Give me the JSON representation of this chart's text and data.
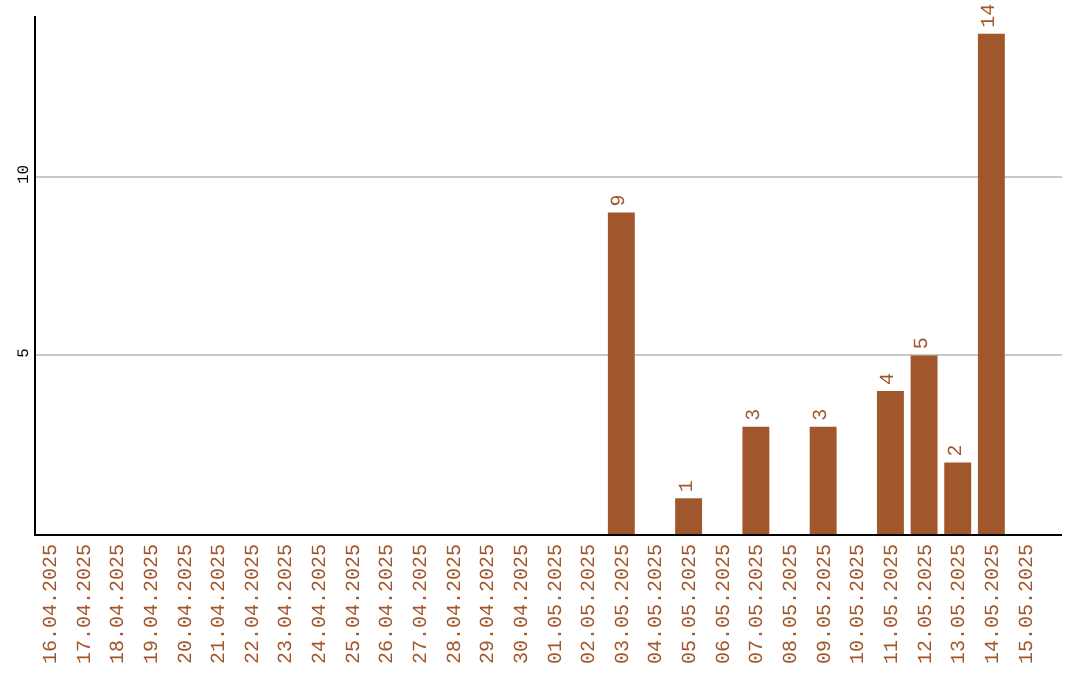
{
  "chart_data": {
    "type": "bar",
    "categories": [
      "16.04.2025",
      "17.04.2025",
      "18.04.2025",
      "19.04.2025",
      "20.04.2025",
      "21.04.2025",
      "22.04.2025",
      "23.04.2025",
      "24.04.2025",
      "25.04.2025",
      "26.04.2025",
      "27.04.2025",
      "28.04.2025",
      "29.04.2025",
      "30.04.2025",
      "01.05.2025",
      "02.05.2025",
      "03.05.2025",
      "04.05.2025",
      "05.05.2025",
      "06.05.2025",
      "07.05.2025",
      "08.05.2025",
      "09.05.2025",
      "10.05.2025",
      "11.05.2025",
      "12.05.2025",
      "13.05.2025",
      "14.05.2025",
      "15.05.2025"
    ],
    "values": [
      0,
      0,
      0,
      0,
      0,
      0,
      0,
      0,
      0,
      0,
      0,
      0,
      0,
      0,
      0,
      0,
      0,
      9,
      0,
      1,
      0,
      3,
      0,
      3,
      0,
      4,
      5,
      2,
      14,
      0
    ],
    "value_labels": [
      null,
      null,
      null,
      null,
      null,
      null,
      null,
      null,
      null,
      null,
      null,
      null,
      null,
      null,
      null,
      null,
      null,
      "9",
      null,
      "1",
      null,
      "3",
      null,
      "3",
      null,
      "4",
      "5",
      "2",
      "14",
      null
    ],
    "color": "#a0572b",
    "ylim": [
      0,
      14.5
    ],
    "yticks": [
      5,
      10
    ],
    "grid": "y",
    "legend": false
  }
}
